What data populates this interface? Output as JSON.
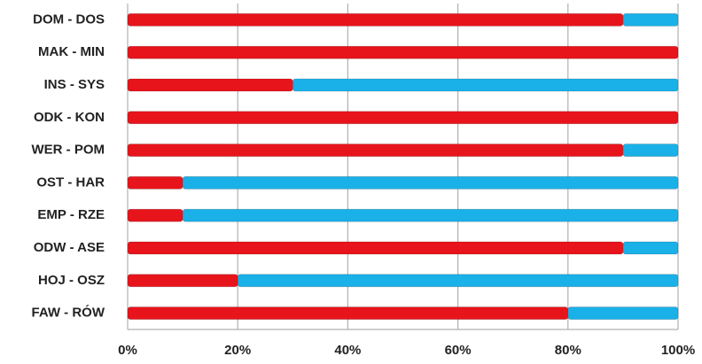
{
  "chart_data": {
    "type": "stacked-bar-horizontal",
    "categories": [
      "DOM - DOS",
      "MAK - MIN",
      "INS - SYS",
      "ODK - KON",
      "WER - POM",
      "OST - HAR",
      "EMP - RZE",
      "ODW - ASE",
      "HOJ - OSZ",
      "FAW - RÓW"
    ],
    "series": [
      {
        "color": "#e8141b",
        "values": [
          90,
          100,
          30,
          100,
          90,
          10,
          10,
          90,
          20,
          80
        ]
      },
      {
        "color": "#1ab0e8",
        "values": [
          10,
          0,
          70,
          0,
          10,
          90,
          90,
          10,
          80,
          20
        ]
      }
    ],
    "xlim": [
      0,
      100
    ],
    "xticks": [
      {
        "value": 0,
        "label": "0%"
      },
      {
        "value": 20,
        "label": "20%"
      },
      {
        "value": 40,
        "label": "40%"
      },
      {
        "value": 60,
        "label": "60%"
      },
      {
        "value": 80,
        "label": "80%"
      },
      {
        "value": 100,
        "label": "100%"
      }
    ],
    "grid": true
  }
}
